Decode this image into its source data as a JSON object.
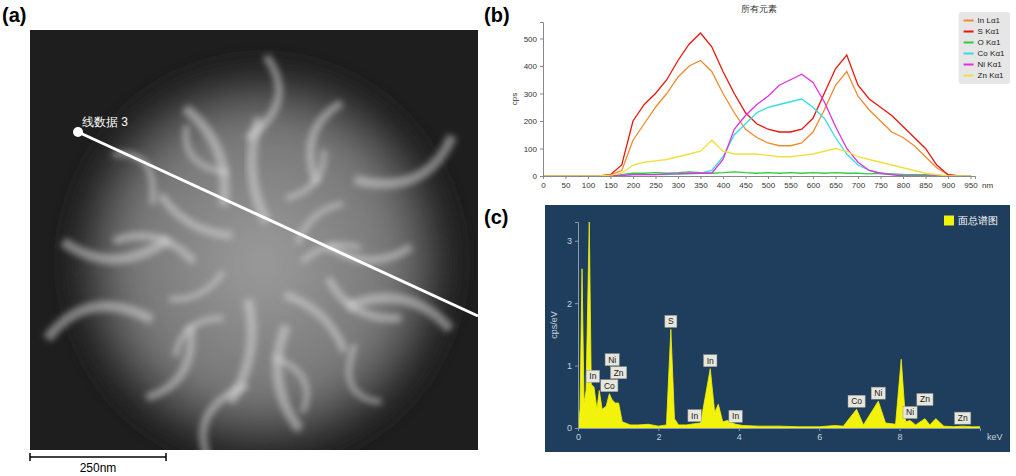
{
  "image": {
    "panel_label": "(a)",
    "line_label": "线数据 3",
    "scale_bar": "250nm"
  },
  "chart_data": [
    {
      "panel_label": "(b)",
      "type": "line",
      "title": "所有元素",
      "x_label": "nm",
      "y_label": "cps",
      "x": [
        0,
        25,
        50,
        75,
        100,
        125,
        150,
        175,
        200,
        225,
        250,
        275,
        300,
        325,
        350,
        375,
        400,
        425,
        450,
        475,
        500,
        525,
        550,
        575,
        600,
        625,
        650,
        675,
        700,
        725,
        750,
        775,
        800,
        825,
        850,
        875,
        900,
        925,
        950
      ],
      "series": [
        {
          "name": "In Lα1",
          "color": "#f08a2c",
          "values": [
            0,
            0,
            0,
            0,
            0,
            0,
            5,
            20,
            130,
            190,
            250,
            300,
            360,
            400,
            420,
            380,
            300,
            230,
            170,
            140,
            120,
            110,
            110,
            120,
            160,
            240,
            330,
            380,
            290,
            240,
            200,
            160,
            140,
            110,
            70,
            30,
            5,
            0,
            0
          ]
        },
        {
          "name": "S Kα1",
          "color": "#e8170c",
          "values": [
            0,
            0,
            0,
            0,
            0,
            0,
            5,
            40,
            200,
            260,
            300,
            350,
            420,
            480,
            520,
            470,
            380,
            300,
            230,
            190,
            170,
            160,
            160,
            170,
            210,
            300,
            390,
            440,
            330,
            280,
            250,
            220,
            180,
            140,
            100,
            40,
            5,
            0,
            0
          ]
        },
        {
          "name": "O Kα1",
          "color": "#2ecc40",
          "values": [
            0,
            0,
            0,
            0,
            0,
            0,
            0,
            5,
            10,
            10,
            12,
            10,
            12,
            15,
            12,
            10,
            12,
            15,
            12,
            10,
            12,
            10,
            12,
            10,
            12,
            10,
            12,
            10,
            10,
            8,
            10,
            8,
            6,
            5,
            5,
            3,
            0,
            0,
            0
          ]
        },
        {
          "name": "Co Kα1",
          "color": "#33dede",
          "values": [
            0,
            0,
            0,
            0,
            0,
            0,
            0,
            2,
            5,
            5,
            5,
            5,
            8,
            8,
            10,
            20,
            70,
            150,
            190,
            230,
            250,
            260,
            270,
            280,
            250,
            210,
            140,
            80,
            40,
            20,
            10,
            5,
            0,
            0,
            0,
            0,
            0,
            0,
            0
          ]
        },
        {
          "name": "Ni Kα1",
          "color": "#e030e0",
          "values": [
            0,
            0,
            0,
            0,
            0,
            0,
            0,
            2,
            5,
            5,
            5,
            8,
            8,
            10,
            10,
            10,
            60,
            170,
            220,
            260,
            290,
            330,
            350,
            370,
            340,
            270,
            180,
            100,
            50,
            20,
            10,
            5,
            0,
            0,
            0,
            0,
            0,
            0,
            0
          ]
        },
        {
          "name": "Zn Kα1",
          "color": "#f0e040",
          "values": [
            0,
            0,
            0,
            0,
            0,
            0,
            3,
            10,
            40,
            50,
            55,
            60,
            70,
            80,
            90,
            130,
            90,
            80,
            80,
            80,
            75,
            70,
            70,
            75,
            80,
            90,
            100,
            90,
            70,
            60,
            50,
            40,
            30,
            20,
            10,
            5,
            0,
            0,
            0
          ]
        }
      ],
      "xlim": [
        0,
        960
      ],
      "ylim": [
        0,
        560
      ],
      "xticks": [
        0,
        50,
        100,
        150,
        200,
        250,
        300,
        350,
        400,
        450,
        500,
        550,
        600,
        650,
        700,
        750,
        800,
        850,
        900,
        950
      ],
      "yticks": [
        0,
        100,
        200,
        300,
        400,
        500
      ],
      "legend": "top-right",
      "grid": false
    },
    {
      "panel_label": "(c)",
      "type": "area",
      "x_label": "keV",
      "y_label": "cps/eV",
      "x": [
        0,
        0.05,
        0.1,
        0.15,
        0.2,
        0.28,
        0.33,
        0.4,
        0.47,
        0.53,
        0.6,
        0.7,
        0.78,
        0.85,
        0.93,
        1.01,
        1.1,
        1.3,
        1.5,
        1.75,
        2.0,
        2.2,
        2.31,
        2.4,
        2.5,
        2.7,
        2.9,
        3.05,
        3.29,
        3.4,
        3.49,
        3.6,
        3.72,
        3.92,
        4.1,
        4.5,
        5.0,
        5.5,
        6.0,
        6.4,
        6.6,
        6.93,
        7.1,
        7.47,
        7.65,
        7.9,
        8.04,
        8.15,
        8.26,
        8.4,
        8.63,
        8.75,
        8.9,
        9.1,
        9.35,
        9.57,
        9.8,
        10
      ],
      "series": [
        {
          "name": "面总谱图",
          "color": "#f2f20a",
          "values": [
            0,
            0.3,
            2.55,
            0.4,
            0.6,
            3.3,
            0.7,
            0.65,
            0.3,
            0.6,
            0.3,
            0.35,
            0.55,
            0.45,
            0.4,
            0.4,
            0.1,
            0.05,
            0.05,
            0.06,
            0.03,
            0.05,
            1.58,
            0.15,
            0.05,
            0.05,
            0.07,
            0.08,
            0.95,
            0.25,
            0.38,
            0.1,
            0.12,
            0.06,
            0.04,
            0.03,
            0.03,
            0.02,
            0.02,
            0.04,
            0.03,
            0.3,
            0.05,
            0.43,
            0.08,
            0.06,
            1.1,
            0.1,
            0.12,
            0.05,
            0.15,
            0.05,
            0.15,
            0.03,
            0.02,
            0.03,
            0.02,
            0.02
          ]
        }
      ],
      "annotations": [
        {
          "text": "In",
          "x": 0.37
        },
        {
          "text": "Co",
          "x": 0.78
        },
        {
          "text": "Zn",
          "x": 1.01
        },
        {
          "text": "Ni",
          "x": 0.85
        },
        {
          "text": "S",
          "x": 2.31
        },
        {
          "text": "In",
          "x": 3.29
        },
        {
          "text": "In",
          "x": 2.9
        },
        {
          "text": "In",
          "x": 3.92
        },
        {
          "text": "Co",
          "x": 6.93
        },
        {
          "text": "Ni",
          "x": 7.47
        },
        {
          "text": "Ni",
          "x": 8.26
        },
        {
          "text": "Zn",
          "x": 8.63
        },
        {
          "text": "Zn",
          "x": 9.57
        }
      ],
      "xlim": [
        0,
        10
      ],
      "ylim": [
        0,
        3.3
      ],
      "xticks": [
        0,
        2,
        4,
        6,
        8
      ],
      "yticks": [
        0,
        1,
        2,
        3
      ],
      "legend": "top-right",
      "grid": false
    }
  ]
}
